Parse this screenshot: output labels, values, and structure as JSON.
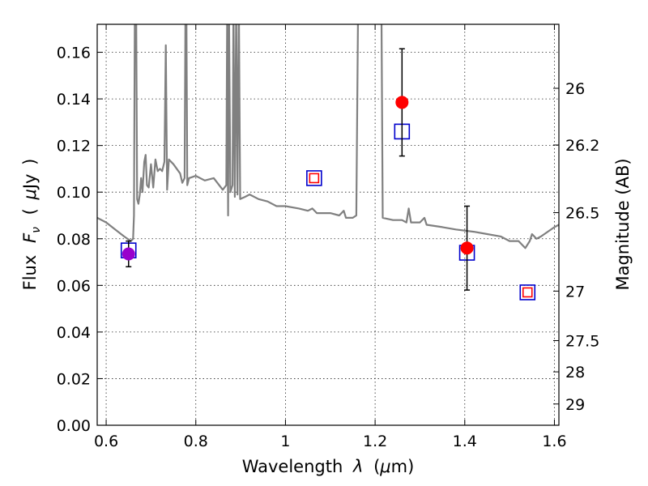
{
  "chart_data": {
    "type": "scatter",
    "xlabel_parts": {
      "prefix": "Wavelength",
      "symbol": "λ",
      "unit_open": "(",
      "unit_mu": "μ",
      "unit_rest": "m)"
    },
    "ylabel_parts": {
      "prefix": "Flux",
      "symbol": "F",
      "subscript": "ν",
      "unit_open": "(",
      "unit_mu": "μ",
      "unit_rest": "Jy",
      "unit_close": ")"
    },
    "ylabel_right": "Magnitude (AB)",
    "xlim": [
      0.58,
      1.61
    ],
    "ylim": [
      0.0,
      0.172
    ],
    "grid": true,
    "x_ticks": [
      {
        "value": 0.6,
        "label": "0.6"
      },
      {
        "value": 0.8,
        "label": "0.8"
      },
      {
        "value": 1.0,
        "label": "1"
      },
      {
        "value": 1.2,
        "label": "1.2"
      },
      {
        "value": 1.4,
        "label": "1.4"
      },
      {
        "value": 1.6,
        "label": "1.6"
      }
    ],
    "y_ticks": [
      {
        "value": 0.0,
        "label": "0.00"
      },
      {
        "value": 0.02,
        "label": "0.02"
      },
      {
        "value": 0.04,
        "label": "0.04"
      },
      {
        "value": 0.06,
        "label": "0.06"
      },
      {
        "value": 0.08,
        "label": "0.08"
      },
      {
        "value": 0.1,
        "label": "0.10"
      },
      {
        "value": 0.12,
        "label": "0.12"
      },
      {
        "value": 0.14,
        "label": "0.14"
      },
      {
        "value": 0.16,
        "label": "0.16"
      }
    ],
    "right_ticks": [
      {
        "magnitude": 26,
        "label": "26"
      },
      {
        "magnitude": 26.2,
        "label": "26.2"
      },
      {
        "magnitude": 26.5,
        "label": "26.5"
      },
      {
        "magnitude": 27,
        "label": "27"
      },
      {
        "magnitude": 27.5,
        "label": "27.5"
      },
      {
        "magnitude": 28,
        "label": "28"
      },
      {
        "magnitude": 29,
        "label": "29"
      }
    ],
    "series": [
      {
        "kind": "model-spectrum",
        "color": "#808080",
        "points": [
          [
            0.58,
            0.089
          ],
          [
            0.6,
            0.087
          ],
          [
            0.62,
            0.084
          ],
          [
            0.64,
            0.081
          ],
          [
            0.655,
            0.079
          ],
          [
            0.66,
            0.08
          ],
          [
            0.662,
            0.09
          ],
          [
            0.664,
            0.18
          ],
          [
            0.667,
            0.18
          ],
          [
            0.669,
            0.097
          ],
          [
            0.672,
            0.095
          ],
          [
            0.675,
            0.099
          ],
          [
            0.678,
            0.106
          ],
          [
            0.681,
            0.1
          ],
          [
            0.685,
            0.113
          ],
          [
            0.688,
            0.116
          ],
          [
            0.691,
            0.103
          ],
          [
            0.695,
            0.102
          ],
          [
            0.7,
            0.112
          ],
          [
            0.705,
            0.102
          ],
          [
            0.71,
            0.114
          ],
          [
            0.715,
            0.109
          ],
          [
            0.72,
            0.11
          ],
          [
            0.725,
            0.109
          ],
          [
            0.73,
            0.113
          ],
          [
            0.733,
            0.163
          ],
          [
            0.736,
            0.101
          ],
          [
            0.74,
            0.114
          ],
          [
            0.75,
            0.112
          ],
          [
            0.765,
            0.108
          ],
          [
            0.77,
            0.104
          ],
          [
            0.775,
            0.106
          ],
          [
            0.777,
            0.18
          ],
          [
            0.779,
            0.18
          ],
          [
            0.781,
            0.103
          ],
          [
            0.785,
            0.106
          ],
          [
            0.8,
            0.107
          ],
          [
            0.82,
            0.105
          ],
          [
            0.84,
            0.106
          ],
          [
            0.86,
            0.101
          ],
          [
            0.868,
            0.103
          ],
          [
            0.87,
            0.18
          ],
          [
            0.872,
            0.09
          ],
          [
            0.874,
            0.18
          ],
          [
            0.877,
            0.1
          ],
          [
            0.882,
            0.103
          ],
          [
            0.884,
            0.18
          ],
          [
            0.887,
            0.098
          ],
          [
            0.89,
            0.18
          ],
          [
            0.893,
            0.099
          ],
          [
            0.896,
            0.18
          ],
          [
            0.899,
            0.097
          ],
          [
            0.91,
            0.098
          ],
          [
            0.92,
            0.099
          ],
          [
            0.94,
            0.097
          ],
          [
            0.96,
            0.096
          ],
          [
            0.98,
            0.094
          ],
          [
            1.0,
            0.094
          ],
          [
            1.03,
            0.093
          ],
          [
            1.05,
            0.092
          ],
          [
            1.06,
            0.093
          ],
          [
            1.07,
            0.091
          ],
          [
            1.1,
            0.091
          ],
          [
            1.12,
            0.09
          ],
          [
            1.13,
            0.092
          ],
          [
            1.135,
            0.089
          ],
          [
            1.15,
            0.089
          ],
          [
            1.158,
            0.09
          ],
          [
            1.162,
            0.18
          ],
          [
            1.214,
            0.18
          ],
          [
            1.217,
            0.089
          ],
          [
            1.24,
            0.088
          ],
          [
            1.26,
            0.088
          ],
          [
            1.27,
            0.087
          ],
          [
            1.275,
            0.093
          ],
          [
            1.28,
            0.087
          ],
          [
            1.3,
            0.087
          ],
          [
            1.31,
            0.089
          ],
          [
            1.315,
            0.086
          ],
          [
            1.35,
            0.085
          ],
          [
            1.38,
            0.084
          ],
          [
            1.42,
            0.083
          ],
          [
            1.45,
            0.082
          ],
          [
            1.48,
            0.081
          ],
          [
            1.5,
            0.079
          ],
          [
            1.52,
            0.079
          ],
          [
            1.535,
            0.076
          ],
          [
            1.545,
            0.079
          ],
          [
            1.55,
            0.082
          ],
          [
            1.56,
            0.08
          ],
          [
            1.57,
            0.081
          ],
          [
            1.585,
            0.083
          ],
          [
            1.6,
            0.085
          ],
          [
            1.61,
            0.086
          ]
        ]
      },
      {
        "kind": "model-photometry",
        "marker": "square",
        "edge_color": "#0000cc",
        "points": [
          [
            0.65,
            0.075
          ],
          [
            1.064,
            0.106
          ],
          [
            1.26,
            0.126
          ],
          [
            1.405,
            0.074
          ],
          [
            1.54,
            0.057
          ]
        ]
      },
      {
        "kind": "inner-square",
        "marker": "square",
        "edge_color": "#ff0000",
        "points": [
          [
            1.064,
            0.106
          ],
          [
            1.54,
            0.057
          ]
        ]
      },
      {
        "kind": "observed",
        "marker": "circle",
        "points": [
          {
            "x": 0.65,
            "y": 0.0735,
            "err": 0.0055,
            "color": "#9900cc"
          },
          {
            "x": 1.26,
            "y": 0.1385,
            "err": 0.023,
            "color": "#ff0000"
          },
          {
            "x": 1.405,
            "y": 0.076,
            "err": 0.018,
            "color": "#ff0000"
          }
        ]
      }
    ]
  }
}
